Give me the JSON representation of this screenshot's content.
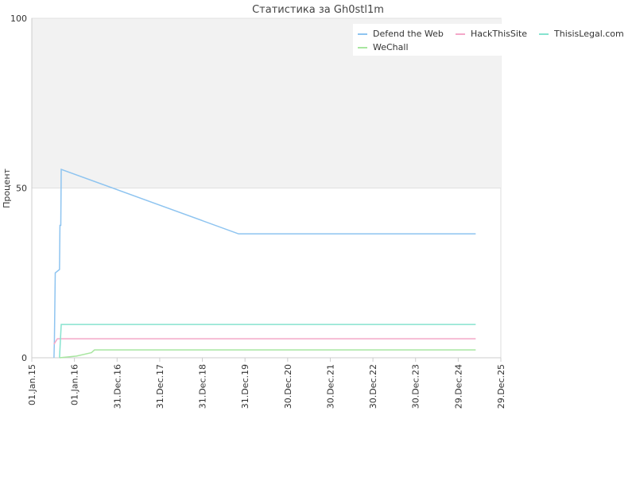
{
  "chart_data": {
    "type": "line",
    "title": "Статистика за Gh0stl1m",
    "y_label": "Процент",
    "xlim": [
      2015,
      2026
    ],
    "xticks": [
      {
        "value": 2015,
        "label": "01.Jan.15"
      },
      {
        "value": 2016,
        "label": "01.Jan.16"
      },
      {
        "value": 2017,
        "label": "31.Dec.16"
      },
      {
        "value": 2018,
        "label": "31.Dec.17"
      },
      {
        "value": 2019,
        "label": "31.Dec.18"
      },
      {
        "value": 2020,
        "label": "31.Dec.19"
      },
      {
        "value": 2021,
        "label": "30.Dec.20"
      },
      {
        "value": 2022,
        "label": "30.Dec.21"
      },
      {
        "value": 2023,
        "label": "30.Dec.22"
      },
      {
        "value": 2024,
        "label": "30.Dec.23"
      },
      {
        "value": 2025,
        "label": "29.Dec.24"
      },
      {
        "value": 2026,
        "label": "29.Dec.25"
      }
    ],
    "ylim": [
      0,
      100
    ],
    "yticks": [
      0,
      50,
      100
    ],
    "grid": true,
    "legend": "top-right",
    "series": [
      {
        "name": "Defend the Web",
        "color": "#8ec4f0",
        "x": [
          2015.52,
          2015.53,
          2015.55,
          2015.65,
          2015.66,
          2015.68,
          2015.69,
          2019.85,
          2025.41
        ],
        "values": [
          0,
          5,
          25,
          26,
          39,
          39,
          55.5,
          36.5,
          36.5
        ]
      },
      {
        "name": "HackThisSite",
        "color": "#f4a8c8",
        "x": [
          2015.52,
          2015.6,
          2025.41
        ],
        "values": [
          4,
          5.6,
          5.6
        ]
      },
      {
        "name": "ThisisLegal.com",
        "color": "#86e3cf",
        "x": [
          2015.65,
          2015.69,
          2025.41
        ],
        "values": [
          0,
          9.8,
          9.8
        ]
      },
      {
        "name": "WeChall",
        "color": "#a8e6a0",
        "x": [
          2015.65,
          2016.05,
          2016.4,
          2016.47,
          2025.41
        ],
        "values": [
          0,
          0.5,
          1.5,
          2.3,
          2.3
        ]
      }
    ]
  }
}
